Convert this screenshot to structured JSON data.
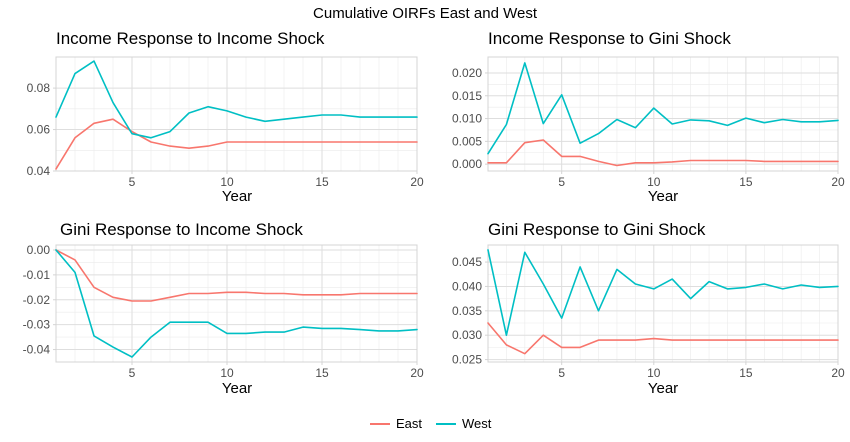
{
  "figure": {
    "suptitle": "Cumulative OIRFs East and West",
    "legend": {
      "position": "bottom",
      "items": [
        {
          "label": "East",
          "color": "#F8766D"
        },
        {
          "label": "West",
          "color": "#00BFC4"
        }
      ]
    }
  },
  "chart_data": [
    {
      "type": "line",
      "title": "Income Response to Income Shock",
      "xlabel": "Year",
      "ylabel": "",
      "xlim": [
        1,
        20
      ],
      "ylim": [
        0.04,
        0.095
      ],
      "xticks": [
        5,
        10,
        15,
        20
      ],
      "yticks": [
        0.04,
        0.06,
        0.08
      ],
      "ytick_labels": [
        "0.04",
        "0.06",
        "0.08"
      ],
      "grid": true,
      "x": [
        1,
        2,
        3,
        4,
        5,
        6,
        7,
        8,
        9,
        10,
        11,
        12,
        13,
        14,
        15,
        16,
        17,
        18,
        19,
        20
      ],
      "series": [
        {
          "name": "East",
          "color": "#F8766D",
          "values": [
            0.041,
            0.056,
            0.063,
            0.065,
            0.059,
            0.054,
            0.052,
            0.051,
            0.052,
            0.054,
            0.054,
            0.054,
            0.054,
            0.054,
            0.054,
            0.054,
            0.054,
            0.054,
            0.054,
            0.054
          ]
        },
        {
          "name": "West",
          "color": "#00BFC4",
          "values": [
            0.066,
            0.087,
            0.093,
            0.073,
            0.058,
            0.056,
            0.059,
            0.068,
            0.071,
            0.069,
            0.066,
            0.064,
            0.065,
            0.066,
            0.067,
            0.067,
            0.066,
            0.066,
            0.066,
            0.066
          ]
        }
      ]
    },
    {
      "type": "line",
      "title": "Income Response to Gini Shock",
      "xlabel": "Year",
      "ylabel": "",
      "xlim": [
        1,
        20
      ],
      "ylim": [
        -0.0015,
        0.0235
      ],
      "xticks": [
        5,
        10,
        15,
        20
      ],
      "yticks": [
        0,
        0.005,
        0.01,
        0.015,
        0.02
      ],
      "ytick_labels": [
        "0.000",
        "0.005",
        "0.010",
        "0.015",
        "0.020"
      ],
      "grid": true,
      "x": [
        1,
        2,
        3,
        4,
        5,
        6,
        7,
        8,
        9,
        10,
        11,
        12,
        13,
        14,
        15,
        16,
        17,
        18,
        19,
        20
      ],
      "series": [
        {
          "name": "East",
          "color": "#F8766D",
          "values": [
            0.0003,
            0.0003,
            0.0047,
            0.0053,
            0.0017,
            0.0017,
            0.0006,
            -0.0003,
            0.0003,
            0.0003,
            0.0005,
            0.0008,
            0.0008,
            0.0008,
            0.0008,
            0.0006,
            0.0006,
            0.0006,
            0.0006,
            0.0006
          ]
        },
        {
          "name": "West",
          "color": "#00BFC4",
          "values": [
            0.0023,
            0.0087,
            0.0222,
            0.0089,
            0.0152,
            0.0046,
            0.0067,
            0.0098,
            0.008,
            0.0123,
            0.0088,
            0.0097,
            0.0095,
            0.0085,
            0.0101,
            0.0091,
            0.0098,
            0.0093,
            0.0093,
            0.0096
          ]
        }
      ]
    },
    {
      "type": "line",
      "title": "Gini Response to Income Shock",
      "xlabel": "Year",
      "ylabel": "",
      "xlim": [
        1,
        20
      ],
      "ylim": [
        -0.045,
        0.002
      ],
      "xticks": [
        5,
        10,
        15,
        20
      ],
      "yticks": [
        0,
        -0.01,
        -0.02,
        -0.03,
        -0.04
      ],
      "ytick_labels": [
        "0.00",
        "-0.01",
        "-0.02",
        "-0.03",
        "-0.04"
      ],
      "grid": true,
      "x": [
        1,
        2,
        3,
        4,
        5,
        6,
        7,
        8,
        9,
        10,
        11,
        12,
        13,
        14,
        15,
        16,
        17,
        18,
        19,
        20
      ],
      "series": [
        {
          "name": "East",
          "color": "#F8766D",
          "values": [
            0,
            -0.004,
            -0.015,
            -0.019,
            -0.0205,
            -0.0205,
            -0.019,
            -0.0175,
            -0.0175,
            -0.017,
            -0.017,
            -0.0175,
            -0.0175,
            -0.018,
            -0.018,
            -0.018,
            -0.0175,
            -0.0175,
            -0.0175,
            -0.0175
          ]
        },
        {
          "name": "West",
          "color": "#00BFC4",
          "values": [
            0,
            -0.009,
            -0.0345,
            -0.039,
            -0.043,
            -0.035,
            -0.029,
            -0.029,
            -0.029,
            -0.0335,
            -0.0335,
            -0.033,
            -0.033,
            -0.031,
            -0.0315,
            -0.0315,
            -0.032,
            -0.0325,
            -0.0325,
            -0.032
          ]
        }
      ]
    },
    {
      "type": "line",
      "title": "Gini Response to Gini Shock",
      "xlabel": "Year",
      "ylabel": "",
      "xlim": [
        1,
        20
      ],
      "ylim": [
        0.0245,
        0.0485
      ],
      "xticks": [
        5,
        10,
        15,
        20
      ],
      "yticks": [
        0.025,
        0.03,
        0.035,
        0.04,
        0.045
      ],
      "ytick_labels": [
        "0.025",
        "0.030",
        "0.035",
        "0.040",
        "0.045"
      ],
      "grid": true,
      "x": [
        1,
        2,
        3,
        4,
        5,
        6,
        7,
        8,
        9,
        10,
        11,
        12,
        13,
        14,
        15,
        16,
        17,
        18,
        19,
        20
      ],
      "series": [
        {
          "name": "East",
          "color": "#F8766D",
          "values": [
            0.0325,
            0.028,
            0.0262,
            0.03,
            0.0275,
            0.0275,
            0.029,
            0.029,
            0.029,
            0.0293,
            0.029,
            0.029,
            0.029,
            0.029,
            0.029,
            0.029,
            0.029,
            0.029,
            0.029,
            0.029
          ]
        },
        {
          "name": "West",
          "color": "#00BFC4",
          "values": [
            0.0475,
            0.03,
            0.047,
            0.0405,
            0.0335,
            0.044,
            0.035,
            0.0435,
            0.0405,
            0.0395,
            0.0415,
            0.0375,
            0.041,
            0.0395,
            0.0398,
            0.0405,
            0.0395,
            0.0403,
            0.0398,
            0.04
          ]
        }
      ]
    }
  ]
}
